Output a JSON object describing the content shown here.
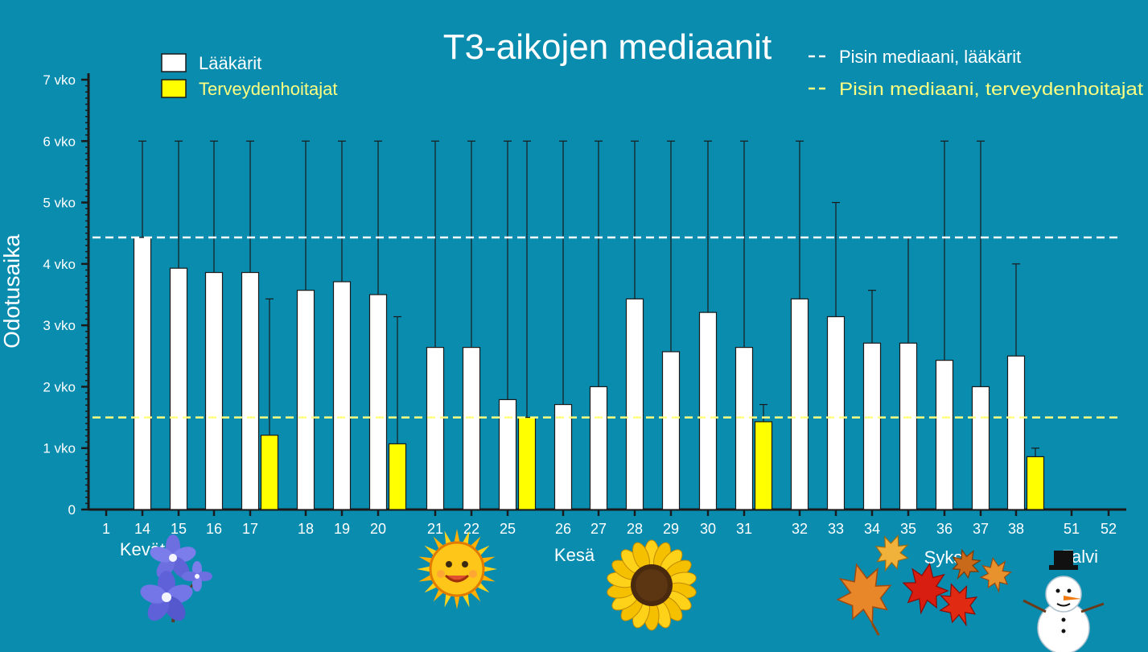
{
  "colors": {
    "background": "#0A8CAF",
    "doctors": "#FFFFFF",
    "nurses": "#FFFF00",
    "axis": "#1A1A1A",
    "nurse_text": "#FFFF80"
  },
  "chart_data": {
    "type": "bar",
    "title": "T3-aikojen mediaanit",
    "ylabel": "Odotusaika",
    "ylim": [
      0,
      7
    ],
    "yticks": [
      "0",
      "1 vko",
      "2 vko",
      "3 vko",
      "4 vko",
      "5 vko",
      "6 vko",
      "7 vko"
    ],
    "grid": false,
    "legend_position": "top-left",
    "categories": [
      "1",
      "14",
      "15",
      "16",
      "17",
      "18",
      "19",
      "20",
      "21",
      "22",
      "25",
      "26",
      "27",
      "28",
      "29",
      "30",
      "31",
      "32",
      "33",
      "34",
      "35",
      "36",
      "37",
      "38",
      "51",
      "52"
    ],
    "series": [
      {
        "name": "Lääkärit",
        "color": "#FFFFFF",
        "values": [
          null,
          4.43,
          3.93,
          3.86,
          3.86,
          3.57,
          3.71,
          3.5,
          2.64,
          2.64,
          1.79,
          1.71,
          2.0,
          3.43,
          2.57,
          3.21,
          2.64,
          3.43,
          3.14,
          2.71,
          2.71,
          2.43,
          2.0,
          2.5,
          null,
          null
        ],
        "error_upper": [
          null,
          6,
          6,
          6,
          6,
          6,
          6,
          6,
          6,
          6,
          6,
          6,
          6,
          6,
          6,
          6,
          6,
          6,
          5,
          3.57,
          4.43,
          6,
          6,
          4,
          null,
          null
        ]
      },
      {
        "name": "Terveydenhoitajat",
        "color": "#FFFF00",
        "values": [
          null,
          null,
          null,
          null,
          1.21,
          null,
          null,
          1.07,
          null,
          null,
          1.5,
          null,
          null,
          null,
          null,
          null,
          1.43,
          null,
          null,
          null,
          null,
          null,
          null,
          0.86,
          null,
          null
        ],
        "error_upper": [
          null,
          null,
          null,
          null,
          3.43,
          null,
          null,
          3.14,
          null,
          null,
          6,
          null,
          null,
          null,
          null,
          null,
          1.71,
          null,
          null,
          null,
          null,
          null,
          null,
          1.0,
          null,
          null
        ]
      }
    ],
    "reference_lines": [
      {
        "label": "Pisin mediaani, lääkärit",
        "value": 4.43,
        "color": "#FFFFFF"
      },
      {
        "label": "Pisin mediaani, terveydenhoitajat",
        "value": 1.5,
        "color": "#FFFF80"
      }
    ],
    "seasons": [
      {
        "label": "Kevät",
        "icon": "hepatica-flower-icon"
      },
      {
        "label": "Kesä",
        "icon": "sunflower-icon"
      },
      {
        "label": "Syksy",
        "icon": "autumn-leaves-icon"
      },
      {
        "label": "Talvi",
        "icon": "snowman-icon"
      }
    ],
    "extra_icons": [
      "smiling-sun-icon"
    ]
  }
}
